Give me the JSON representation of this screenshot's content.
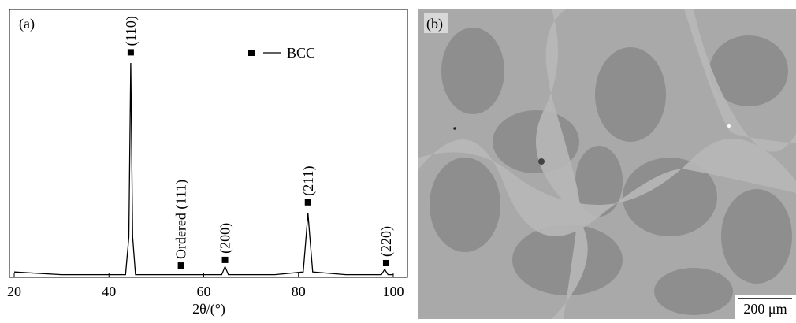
{
  "chart_data": {
    "type": "line",
    "panel_label": "(a)",
    "x_label": "2θ/(°)",
    "x": [
      20,
      30,
      40,
      43.5,
      44.2,
      44.6,
      45.0,
      45.6,
      55,
      63.8,
      64.5,
      65.2,
      75,
      81,
      81.6,
      82,
      82.4,
      83,
      90,
      97.5,
      98.2,
      98.9,
      100
    ],
    "values": [
      2,
      1,
      1,
      1,
      15,
      80,
      15,
      1,
      1,
      1,
      4,
      1,
      1,
      2,
      15,
      24,
      15,
      2,
      1,
      1,
      3,
      1,
      1
    ],
    "color": "#000000",
    "xlim": [
      19,
      103
    ],
    "ylim": [
      0,
      100
    ],
    "xticks": [
      20,
      40,
      60,
      80,
      100
    ],
    "grid": false,
    "legend": "upper right",
    "legend_entry": "BCC",
    "annotations": [
      {
        "text": "(110)",
        "x": 44.6,
        "y": 84
      },
      {
        "text": "Ordered (111)",
        "x": 55.2,
        "y": 4.4
      },
      {
        "text": "(200)",
        "x": 64.5,
        "y": 6.5
      },
      {
        "text": "(211)",
        "x": 82,
        "y": 28
      },
      {
        "text": "(220)",
        "x": 98.5,
        "y": 5.3
      }
    ]
  },
  "image_panel": {
    "panel_label": "(b)",
    "scale_bar": "200 μm"
  }
}
